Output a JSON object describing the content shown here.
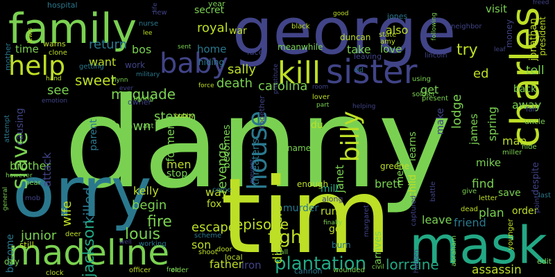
{
  "words": [
    {
      "text": "danny",
      "color": "#7ad151"
    },
    {
      "text": "george",
      "color": "#414487"
    },
    {
      "text": "orry",
      "color": "#2a788e"
    },
    {
      "text": "tim",
      "color": "#bddf26"
    },
    {
      "text": "mask",
      "color": "#22a884"
    },
    {
      "text": "family",
      "color": "#7ad151"
    },
    {
      "text": "charles",
      "color": "#bddf26"
    },
    {
      "text": "madeline",
      "color": "#7ad151"
    },
    {
      "text": "sister",
      "color": "#414487"
    },
    {
      "text": "kill",
      "color": "#bddf26"
    },
    {
      "text": "baby",
      "color": "#414487"
    },
    {
      "text": "help",
      "color": "#bddf26"
    },
    {
      "text": "slave",
      "color": "#7ad151"
    },
    {
      "text": "house",
      "color": "#2a788e"
    },
    {
      "text": "billy",
      "color": "#bddf26"
    },
    {
      "text": "plantation",
      "color": "#22a884"
    },
    {
      "text": "fight",
      "color": "#bddf26"
    },
    {
      "text": "episode",
      "color": "#bddf26"
    },
    {
      "text": "lorraine",
      "color": "#22a884"
    },
    {
      "text": "assassin",
      "color": "#bddf26"
    },
    {
      "text": "father",
      "color": "#bddf26"
    },
    {
      "text": "iron",
      "color": "#414487"
    },
    {
      "text": "son",
      "color": "#bddf26"
    },
    {
      "text": "escape",
      "color": "#bddf26"
    },
    {
      "text": "fire",
      "color": "#7ad151"
    },
    {
      "text": "begin",
      "color": "#7ad151"
    },
    {
      "text": "louis",
      "color": "#7ad151"
    },
    {
      "text": "killed",
      "color": "#2a788e"
    },
    {
      "text": "jackson",
      "color": "#22a884"
    },
    {
      "text": "wife",
      "color": "#bddf26"
    },
    {
      "text": "junior",
      "color": "#7ad151"
    },
    {
      "text": "become",
      "color": "#2a788e"
    },
    {
      "text": "brother",
      "color": "#7ad151"
    },
    {
      "text": "attack",
      "color": "#414487"
    },
    {
      "text": "see",
      "color": "#7ad151"
    },
    {
      "text": "time",
      "color": "#7ad151"
    },
    {
      "text": "return",
      "color": "#2a788e"
    },
    {
      "text": "bos",
      "color": "#7ad151"
    },
    {
      "text": "want",
      "color": "#bddf26"
    },
    {
      "text": "sweet",
      "color": "#bddf26"
    },
    {
      "text": "mcquade",
      "color": "#7ad151"
    },
    {
      "text": "sally",
      "color": "#bddf26"
    },
    {
      "text": "death",
      "color": "#7ad151"
    },
    {
      "text": "carolina",
      "color": "#7ad151"
    },
    {
      "text": "discovers",
      "color": "#bddf26"
    },
    {
      "text": "revenge",
      "color": "#7ad151"
    },
    {
      "text": "becomes",
      "color": "#7ad151"
    },
    {
      "text": "royal",
      "color": "#bddf26"
    },
    {
      "text": "home",
      "color": "#2a788e"
    },
    {
      "text": "war",
      "color": "#bddf26"
    },
    {
      "text": "secret",
      "color": "#7ad151"
    },
    {
      "text": "visit",
      "color": "#7ad151"
    },
    {
      "text": "also",
      "color": "#bddf26"
    },
    {
      "text": "take",
      "color": "#7ad151"
    },
    {
      "text": "love",
      "color": "#7ad151"
    },
    {
      "text": "try",
      "color": "#bddf26"
    },
    {
      "text": "ed",
      "color": "#bddf26"
    },
    {
      "text": "tell",
      "color": "#7ad151"
    },
    {
      "text": "spring",
      "color": "#7ad151"
    },
    {
      "text": "get",
      "color": "#7ad151"
    },
    {
      "text": "learns",
      "color": "#7ad151"
    },
    {
      "text": "meet",
      "color": "#7ad151"
    },
    {
      "text": "lodge",
      "color": "#7ad151"
    },
    {
      "text": "child",
      "color": "#bddf26"
    },
    {
      "text": "james",
      "color": "#7ad151"
    },
    {
      "text": "man",
      "color": "#bddf26"
    },
    {
      "text": "mike",
      "color": "#7ad151"
    },
    {
      "text": "brett",
      "color": "#7ad151"
    },
    {
      "text": "janet",
      "color": "#7ad151"
    },
    {
      "text": "du",
      "color": "#bddf26"
    },
    {
      "text": "find",
      "color": "#7ad151"
    },
    {
      "text": "save",
      "color": "#7ad151"
    },
    {
      "text": "plan",
      "color": "#7ad151"
    },
    {
      "text": "order",
      "color": "#bddf26"
    },
    {
      "text": "leave",
      "color": "#7ad151"
    },
    {
      "text": "friend",
      "color": "#2a788e"
    },
    {
      "text": "run",
      "color": "#bddf26"
    },
    {
      "text": "go",
      "color": "#bddf26"
    },
    {
      "text": "murder",
      "color": "#2a788e"
    },
    {
      "text": "arrives",
      "color": "#7ad151"
    },
    {
      "text": "mill",
      "color": "#22a884"
    },
    {
      "text": "kelly",
      "color": "#bddf26"
    },
    {
      "text": "way",
      "color": "#bddf26"
    },
    {
      "text": "fox",
      "color": "#bddf26"
    },
    {
      "text": "men",
      "color": "#bddf26"
    },
    {
      "text": "stop",
      "color": "#7ad151"
    },
    {
      "text": "steven",
      "color": "#7ad151"
    },
    {
      "text": "former",
      "color": "#7ad151"
    },
    {
      "text": "brown",
      "color": "#7ad151"
    },
    {
      "text": "parent",
      "color": "#2a788e"
    },
    {
      "text": "away",
      "color": "#7ad151"
    },
    {
      "text": "back",
      "color": "#7ad151"
    },
    {
      "text": "hospital",
      "color": "#2a788e"
    },
    {
      "text": "jones",
      "color": "#2a788e"
    },
    {
      "text": "black",
      "color": "#bddf26"
    },
    {
      "text": "duncan",
      "color": "#bddf26"
    },
    {
      "text": "meanwhile",
      "color": "#7ad151"
    },
    {
      "text": "hiding",
      "color": "#2a788e"
    },
    {
      "text": "year",
      "color": "#7ad151"
    },
    {
      "text": "mother",
      "color": "#2a788e"
    },
    {
      "text": "lewis",
      "color": "#bddf26"
    },
    {
      "text": "warns",
      "color": "#bddf26"
    },
    {
      "text": "clone",
      "color": "#bddf26"
    },
    {
      "text": "getting",
      "color": "#2a788e"
    },
    {
      "text": "flynn",
      "color": "#7ad151"
    },
    {
      "text": "sent",
      "color": "#7ad151"
    },
    {
      "text": "work",
      "color": "#414487"
    },
    {
      "text": "owner",
      "color": "#414487"
    },
    {
      "text": "act",
      "color": "#7ad151"
    },
    {
      "text": "bobby",
      "color": "#bddf26"
    },
    {
      "text": "named",
      "color": "#7ad151"
    },
    {
      "text": "lover",
      "color": "#bddf26"
    },
    {
      "text": "helping",
      "color": "#414487"
    },
    {
      "text": "greene",
      "color": "#bddf26"
    },
    {
      "text": "captured",
      "color": "#414487"
    },
    {
      "text": "battle",
      "color": "#414487"
    },
    {
      "text": "enough",
      "color": "#bddf26"
    },
    {
      "text": "along",
      "color": "#414487"
    },
    {
      "text": "finally",
      "color": "#7ad151"
    },
    {
      "text": "margaret",
      "color": "#414487"
    },
    {
      "text": "burn",
      "color": "#2a788e"
    },
    {
      "text": "wounded",
      "color": "#7ad151"
    },
    {
      "text": "civil",
      "color": "#7ad151"
    },
    {
      "text": "cannon",
      "color": "#2a788e"
    },
    {
      "text": "call",
      "color": "#7ad151"
    },
    {
      "text": "door",
      "color": "#bddf26"
    },
    {
      "text": "shoot",
      "color": "#bddf26"
    },
    {
      "text": "local",
      "color": "#bddf26"
    },
    {
      "text": "scheme",
      "color": "#2a788e"
    },
    {
      "text": "officer",
      "color": "#bddf26"
    },
    {
      "text": "clock",
      "color": "#bddf26"
    },
    {
      "text": "still",
      "color": "#bddf26"
    },
    {
      "text": "day",
      "color": "#7ad151"
    },
    {
      "text": "deer",
      "color": "#bddf26"
    },
    {
      "text": "well",
      "color": "#414487"
    },
    {
      "text": "working",
      "color": "#2a788e"
    },
    {
      "text": "older",
      "color": "#7ad151"
    },
    {
      "text": "free",
      "color": "#7ad151"
    },
    {
      "text": "mob",
      "color": "#414487"
    },
    {
      "text": "general",
      "color": "#7ad151"
    },
    {
      "text": "near",
      "color": "#7ad151"
    },
    {
      "text": "however",
      "color": "#7ad151"
    },
    {
      "text": "attempt",
      "color": "#2a788e"
    },
    {
      "text": "causing",
      "color": "#414487"
    },
    {
      "text": "emotion",
      "color": "#414487"
    },
    {
      "text": "hand",
      "color": "#bddf26"
    },
    {
      "text": "military",
      "color": "#2a788e"
    },
    {
      "text": "trying",
      "color": "#7ad151"
    },
    {
      "text": "ever",
      "color": "#414487"
    },
    {
      "text": "force",
      "color": "#bddf26"
    },
    {
      "text": "prostitute",
      "color": "#414487"
    },
    {
      "text": "face",
      "color": "#414487"
    },
    {
      "text": "state",
      "color": "#bddf26"
    },
    {
      "text": "amy",
      "color": "#bddf26"
    },
    {
      "text": "old",
      "color": "#2a788e"
    },
    {
      "text": "leaving",
      "color": "#414487"
    },
    {
      "text": "lincoln",
      "color": "#414487"
    },
    {
      "text": "using",
      "color": "#7ad151"
    },
    {
      "text": "present",
      "color": "#7ad151"
    },
    {
      "text": "soldier",
      "color": "#7ad151"
    },
    {
      "text": "room",
      "color": "#414487"
    },
    {
      "text": "part",
      "color": "#7ad151"
    },
    {
      "text": "money",
      "color": "#414487"
    },
    {
      "text": "following",
      "color": "#7ad151"
    },
    {
      "text": "neighbor",
      "color": "#414487"
    },
    {
      "text": "good",
      "color": "#bddf26"
    },
    {
      "text": "new",
      "color": "#414487"
    },
    {
      "text": "nurse",
      "color": "#2a788e"
    },
    {
      "text": "lee",
      "color": "#bddf26"
    },
    {
      "text": "life",
      "color": "#414487"
    },
    {
      "text": "freed",
      "color": "#414487"
    },
    {
      "text": "jonathan",
      "color": "#bddf26"
    },
    {
      "text": "president",
      "color": "#bddf26"
    },
    {
      "text": "fall",
      "color": "#414487"
    },
    {
      "text": "uncle",
      "color": "#7ad151"
    },
    {
      "text": "miller",
      "color": "#7ad151"
    },
    {
      "text": "hide",
      "color": "#7ad151"
    },
    {
      "text": "despite",
      "color": "#414487"
    },
    {
      "text": "last",
      "color": "#2a788e"
    },
    {
      "text": "point",
      "color": "#414487"
    },
    {
      "text": "younger",
      "color": "#bddf26"
    },
    {
      "text": "letter",
      "color": "#bddf26"
    },
    {
      "text": "dead",
      "color": "#bddf26"
    },
    {
      "text": "give",
      "color": "#7ad151"
    },
    {
      "text": "abraham",
      "color": "#7ad151"
    },
    {
      "text": "edit",
      "color": "#7ad151"
    },
    {
      "text": "threatens",
      "color": "#2a788e"
    },
    {
      "text": "prevent",
      "color": "#414487"
    },
    {
      "text": "come",
      "color": "#2a788e"
    },
    {
      "text": "together",
      "color": "#414487"
    },
    {
      "text": "hidden",
      "color": "#414487"
    },
    {
      "text": "make",
      "color": "#414487"
    },
    {
      "text": "leaf",
      "color": "#414487"
    }
  ]
}
